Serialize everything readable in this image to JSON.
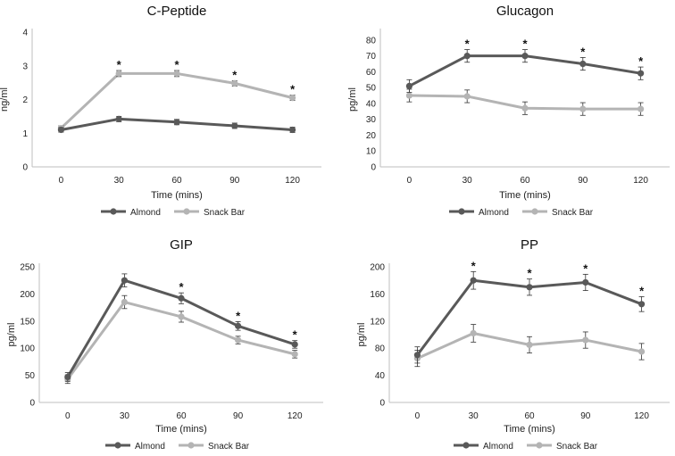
{
  "colors": {
    "almond": "#595959",
    "snack": "#b4b4b4",
    "axis": "#bfbfbf"
  },
  "chart_data": [
    {
      "type": "line",
      "title": "C-Peptide",
      "xlabel": "Time (mins)",
      "ylabel": "ng/ml",
      "categories": [
        "0",
        "30",
        "60",
        "90",
        "120"
      ],
      "ylim": [
        0,
        4
      ],
      "yticks": [
        0,
        1,
        2,
        3,
        4
      ],
      "series": [
        {
          "name": "Almond",
          "values": [
            1.1,
            1.42,
            1.33,
            1.22,
            1.1
          ],
          "errors": [
            0.07,
            0.08,
            0.08,
            0.08,
            0.08
          ]
        },
        {
          "name": "Snack Bar",
          "values": [
            1.15,
            2.77,
            2.77,
            2.48,
            2.05
          ],
          "errors": [
            0.07,
            0.09,
            0.09,
            0.08,
            0.08
          ]
        }
      ],
      "significance": [
        "",
        "*",
        "*",
        "*",
        "*"
      ]
    },
    {
      "type": "line",
      "title": "Glucagon",
      "xlabel": "Time (mins)",
      "ylabel": "pg/ml",
      "categories": [
        "0",
        "30",
        "60",
        "90",
        "120"
      ],
      "ylim": [
        0,
        85
      ],
      "yticks": [
        0,
        10,
        20,
        30,
        40,
        50,
        60,
        70,
        80
      ],
      "series": [
        {
          "name": "Almond",
          "values": [
            51,
            70,
            70,
            65,
            59
          ],
          "errors": [
            4,
            4,
            4,
            4,
            4
          ]
        },
        {
          "name": "Snack Bar",
          "values": [
            45,
            44.5,
            37,
            36.5,
            36.5
          ],
          "errors": [
            4,
            4,
            4,
            4,
            4
          ]
        }
      ],
      "significance": [
        "",
        "*",
        "*",
        "*",
        "*"
      ]
    },
    {
      "type": "line",
      "title": "GIP",
      "xlabel": "Time (mins)",
      "ylabel": "pg/ml",
      "categories": [
        "0",
        "30",
        "60",
        "90",
        "120"
      ],
      "ylim": [
        0,
        250
      ],
      "yticks": [
        0,
        50,
        100,
        150,
        200,
        250
      ],
      "series": [
        {
          "name": "Almond",
          "values": [
            47,
            225,
            192,
            141,
            107
          ],
          "errors": [
            8,
            12,
            10,
            8,
            7
          ]
        },
        {
          "name": "Snack Bar",
          "values": [
            43,
            185,
            158,
            115,
            89
          ],
          "errors": [
            8,
            12,
            10,
            7,
            7
          ]
        }
      ],
      "significance": [
        "",
        "",
        "*",
        "*",
        "*"
      ]
    },
    {
      "type": "line",
      "title": "PP",
      "xlabel": "Time (mins)",
      "ylabel": "pg/ml",
      "categories": [
        "0",
        "30",
        "60",
        "90",
        "120"
      ],
      "ylim": [
        0,
        200
      ],
      "yticks": [
        0,
        40,
        80,
        120,
        160,
        200
      ],
      "series": [
        {
          "name": "Almond",
          "values": [
            70,
            180,
            170,
            177,
            145
          ],
          "errors": [
            12,
            13,
            12,
            12,
            11
          ]
        },
        {
          "name": "Snack Bar",
          "values": [
            65,
            102,
            85,
            92,
            75
          ],
          "errors": [
            12,
            13,
            12,
            12,
            12
          ]
        }
      ],
      "significance": [
        "",
        "*",
        "*",
        "*",
        "*"
      ]
    }
  ]
}
